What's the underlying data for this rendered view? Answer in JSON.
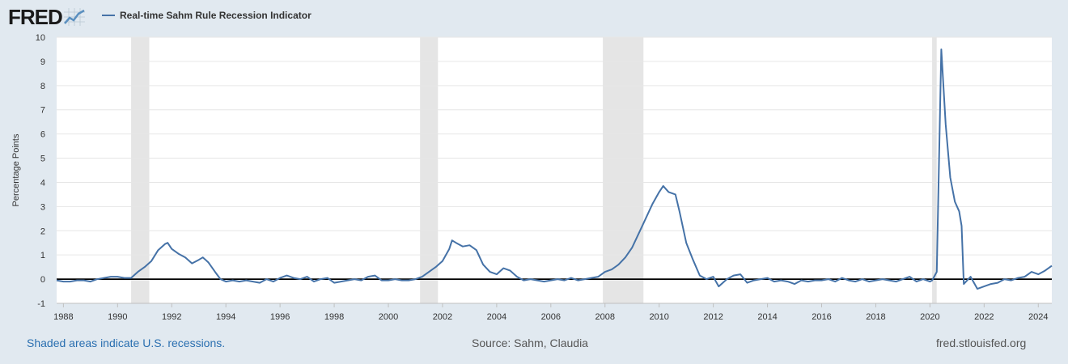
{
  "header": {
    "logo_text": "FRED",
    "legend_label": "Real-time Sahm Rule Recession Indicator"
  },
  "footer": {
    "note": "Shaded areas indicate U.S. recessions.",
    "source": "Source: Sahm, Claudia",
    "url": "fred.stlouisfed.org"
  },
  "colors": {
    "series": "#4572a7",
    "recession_band": "#e5e5e5",
    "zero_line": "#000000",
    "background": "#e1e9f0",
    "plot_background": "#ffffff",
    "logo_graph": "#5a8fbf"
  },
  "chart_data": {
    "type": "line",
    "title": "",
    "xlabel": "",
    "ylabel": "Percentage Points",
    "xlim": [
      1987.75,
      2024.5
    ],
    "ylim": [
      -1,
      10
    ],
    "x_ticks": [
      1988,
      1990,
      1992,
      1994,
      1996,
      1998,
      2000,
      2002,
      2004,
      2006,
      2008,
      2010,
      2012,
      2014,
      2016,
      2018,
      2020,
      2022,
      2024
    ],
    "y_ticks": [
      -1,
      0,
      1,
      2,
      3,
      4,
      5,
      6,
      7,
      8,
      9,
      10
    ],
    "grid": "horizontal",
    "legend_position": "top-left",
    "recessions": [
      [
        1990.5,
        1991.17
      ],
      [
        2001.17,
        2001.83
      ],
      [
        2007.92,
        2009.42
      ],
      [
        2020.08,
        2020.25
      ]
    ],
    "reference_line": 0,
    "series": [
      {
        "name": "Real-time Sahm Rule Recession Indicator",
        "points": [
          [
            1987.75,
            -0.05
          ],
          [
            1988.0,
            -0.1
          ],
          [
            1988.25,
            -0.1
          ],
          [
            1988.5,
            -0.05
          ],
          [
            1988.75,
            -0.05
          ],
          [
            1989.0,
            -0.1
          ],
          [
            1989.25,
            0.0
          ],
          [
            1989.5,
            0.05
          ],
          [
            1989.75,
            0.1
          ],
          [
            1990.0,
            0.1
          ],
          [
            1990.25,
            0.05
          ],
          [
            1990.5,
            0.05
          ],
          [
            1990.75,
            0.3
          ],
          [
            1991.0,
            0.5
          ],
          [
            1991.25,
            0.75
          ],
          [
            1991.5,
            1.2
          ],
          [
            1991.75,
            1.45
          ],
          [
            1991.85,
            1.5
          ],
          [
            1992.0,
            1.25
          ],
          [
            1992.25,
            1.05
          ],
          [
            1992.5,
            0.9
          ],
          [
            1992.75,
            0.65
          ],
          [
            1993.0,
            0.8
          ],
          [
            1993.15,
            0.9
          ],
          [
            1993.35,
            0.7
          ],
          [
            1993.6,
            0.3
          ],
          [
            1993.8,
            0.0
          ],
          [
            1994.0,
            -0.1
          ],
          [
            1994.25,
            -0.05
          ],
          [
            1994.5,
            -0.1
          ],
          [
            1994.75,
            -0.05
          ],
          [
            1995.0,
            -0.1
          ],
          [
            1995.25,
            -0.15
          ],
          [
            1995.5,
            0.0
          ],
          [
            1995.75,
            -0.1
          ],
          [
            1996.0,
            0.05
          ],
          [
            1996.25,
            0.15
          ],
          [
            1996.5,
            0.05
          ],
          [
            1996.75,
            0.0
          ],
          [
            1997.0,
            0.1
          ],
          [
            1997.25,
            -0.1
          ],
          [
            1997.5,
            0.0
          ],
          [
            1997.75,
            0.05
          ],
          [
            1998.0,
            -0.15
          ],
          [
            1998.25,
            -0.1
          ],
          [
            1998.5,
            -0.05
          ],
          [
            1998.75,
            0.0
          ],
          [
            1999.0,
            -0.05
          ],
          [
            1999.25,
            0.1
          ],
          [
            1999.5,
            0.15
          ],
          [
            1999.75,
            -0.05
          ],
          [
            2000.0,
            -0.05
          ],
          [
            2000.25,
            0.0
          ],
          [
            2000.5,
            -0.05
          ],
          [
            2000.75,
            -0.05
          ],
          [
            2001.0,
            0.0
          ],
          [
            2001.25,
            0.1
          ],
          [
            2001.5,
            0.3
          ],
          [
            2001.75,
            0.5
          ],
          [
            2002.0,
            0.75
          ],
          [
            2002.25,
            1.25
          ],
          [
            2002.35,
            1.6
          ],
          [
            2002.5,
            1.5
          ],
          [
            2002.75,
            1.35
          ],
          [
            2003.0,
            1.4
          ],
          [
            2003.25,
            1.2
          ],
          [
            2003.5,
            0.6
          ],
          [
            2003.75,
            0.3
          ],
          [
            2004.0,
            0.2
          ],
          [
            2004.25,
            0.45
          ],
          [
            2004.5,
            0.35
          ],
          [
            2004.75,
            0.1
          ],
          [
            2005.0,
            -0.05
          ],
          [
            2005.25,
            0.0
          ],
          [
            2005.5,
            -0.05
          ],
          [
            2005.75,
            -0.1
          ],
          [
            2006.0,
            -0.05
          ],
          [
            2006.25,
            0.0
          ],
          [
            2006.5,
            -0.05
          ],
          [
            2006.75,
            0.05
          ],
          [
            2007.0,
            -0.05
          ],
          [
            2007.25,
            0.0
          ],
          [
            2007.5,
            0.05
          ],
          [
            2007.75,
            0.1
          ],
          [
            2008.0,
            0.3
          ],
          [
            2008.25,
            0.4
          ],
          [
            2008.5,
            0.6
          ],
          [
            2008.75,
            0.9
          ],
          [
            2009.0,
            1.3
          ],
          [
            2009.25,
            1.9
          ],
          [
            2009.5,
            2.5
          ],
          [
            2009.75,
            3.1
          ],
          [
            2010.0,
            3.6
          ],
          [
            2010.15,
            3.85
          ],
          [
            2010.35,
            3.6
          ],
          [
            2010.6,
            3.5
          ],
          [
            2010.75,
            2.8
          ],
          [
            2011.0,
            1.5
          ],
          [
            2011.25,
            0.8
          ],
          [
            2011.5,
            0.15
          ],
          [
            2011.75,
            0.0
          ],
          [
            2012.0,
            0.1
          ],
          [
            2012.2,
            -0.3
          ],
          [
            2012.5,
            0.0
          ],
          [
            2012.75,
            0.15
          ],
          [
            2013.0,
            0.2
          ],
          [
            2013.25,
            -0.15
          ],
          [
            2013.5,
            -0.05
          ],
          [
            2013.75,
            0.0
          ],
          [
            2014.0,
            0.05
          ],
          [
            2014.25,
            -0.1
          ],
          [
            2014.5,
            -0.05
          ],
          [
            2014.75,
            -0.1
          ],
          [
            2015.0,
            -0.2
          ],
          [
            2015.25,
            -0.05
          ],
          [
            2015.5,
            -0.1
          ],
          [
            2015.75,
            -0.05
          ],
          [
            2016.0,
            -0.05
          ],
          [
            2016.25,
            0.0
          ],
          [
            2016.5,
            -0.1
          ],
          [
            2016.75,
            0.05
          ],
          [
            2017.0,
            -0.05
          ],
          [
            2017.25,
            -0.1
          ],
          [
            2017.5,
            0.0
          ],
          [
            2017.75,
            -0.1
          ],
          [
            2018.0,
            -0.05
          ],
          [
            2018.25,
            0.0
          ],
          [
            2018.5,
            -0.05
          ],
          [
            2018.75,
            -0.1
          ],
          [
            2019.0,
            0.0
          ],
          [
            2019.25,
            0.1
          ],
          [
            2019.5,
            -0.1
          ],
          [
            2019.75,
            0.0
          ],
          [
            2020.0,
            -0.1
          ],
          [
            2020.08,
            -0.05
          ],
          [
            2020.25,
            0.3
          ],
          [
            2020.42,
            9.5
          ],
          [
            2020.58,
            6.4
          ],
          [
            2020.75,
            4.2
          ],
          [
            2020.92,
            3.2
          ],
          [
            2021.08,
            2.8
          ],
          [
            2021.17,
            2.2
          ],
          [
            2021.25,
            -0.2
          ],
          [
            2021.5,
            0.1
          ],
          [
            2021.75,
            -0.4
          ],
          [
            2022.0,
            -0.3
          ],
          [
            2022.25,
            -0.2
          ],
          [
            2022.5,
            -0.15
          ],
          [
            2022.75,
            0.0
          ],
          [
            2023.0,
            -0.05
          ],
          [
            2023.25,
            0.05
          ],
          [
            2023.5,
            0.1
          ],
          [
            2023.75,
            0.3
          ],
          [
            2024.0,
            0.2
          ],
          [
            2024.25,
            0.35
          ],
          [
            2024.5,
            0.55
          ]
        ]
      }
    ]
  }
}
